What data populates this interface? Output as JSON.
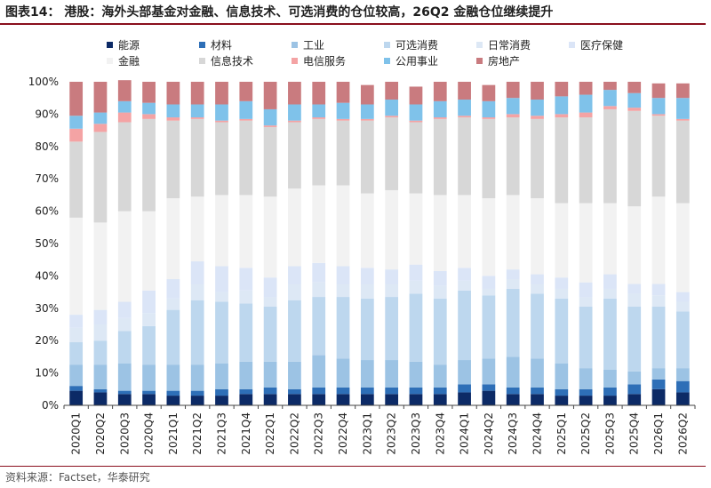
{
  "header": {
    "title": "图表14：  港股：海外头部基金对金融、信息技术、可选消费的仓位较高，26Q2 金融仓位继续提升"
  },
  "source": "资料来源：Factset，华泰研究",
  "chart_data": {
    "type": "bar",
    "stacked": true,
    "ylim": [
      0,
      100
    ],
    "yticks": [
      "0%",
      "10%",
      "20%",
      "30%",
      "40%",
      "50%",
      "60%",
      "70%",
      "80%",
      "90%",
      "100%"
    ],
    "legend_position": "top",
    "grid": false,
    "categories": [
      "2020Q1",
      "2020Q2",
      "2020Q3",
      "2020Q4",
      "2021Q1",
      "2021Q2",
      "2021Q3",
      "2021Q4",
      "2022Q1",
      "2022Q2",
      "2022Q3",
      "2022Q4",
      "2023Q1",
      "2023Q2",
      "2023Q3",
      "2023Q4",
      "2024Q1",
      "2024Q2",
      "2024Q3",
      "2024Q4",
      "2025Q1",
      "2025Q2",
      "2025Q3",
      "2025Q4",
      "2026Q1",
      "2026Q2"
    ],
    "series": [
      {
        "name": "能源",
        "color": "#0c2a66",
        "values": [
          4.5,
          4,
          3.5,
          3.5,
          3,
          3,
          3,
          3.5,
          3.5,
          3.5,
          3.5,
          3.5,
          3.5,
          3.5,
          3.5,
          3.5,
          4,
          4.5,
          3.5,
          3.5,
          3,
          3,
          3,
          3.5,
          5,
          4
        ]
      },
      {
        "name": "材料",
        "color": "#2e6fb7",
        "values": [
          1.5,
          1,
          1,
          1,
          1.5,
          1.5,
          2,
          1.5,
          2,
          1.5,
          2,
          2,
          2,
          2,
          2,
          2,
          2.5,
          2,
          2,
          2,
          2,
          2,
          2.5,
          3,
          3,
          3.5
        ]
      },
      {
        "name": "工业",
        "color": "#9cc3e4",
        "values": [
          6.5,
          7.5,
          8.5,
          8,
          8,
          8,
          8,
          8.5,
          8,
          8.5,
          10,
          9,
          8.5,
          8.5,
          8,
          7,
          7.5,
          8,
          9.5,
          9,
          8,
          6.5,
          5.5,
          4,
          3.5,
          4
        ]
      },
      {
        "name": "可选消费",
        "color": "#bdd7ee",
        "values": [
          7,
          7.5,
          10,
          12,
          17,
          20,
          19,
          18,
          17,
          19,
          18,
          19,
          19,
          19.5,
          21,
          20.5,
          21.5,
          19.5,
          21,
          20,
          20,
          19,
          22,
          20,
          19,
          17.5
        ]
      },
      {
        "name": "日常消费",
        "color": "#dde8f5",
        "values": [
          4.5,
          5,
          4,
          4,
          3.5,
          5,
          3,
          4,
          3,
          5,
          4.5,
          4,
          4.5,
          4,
          4,
          4,
          3,
          2,
          3,
          3,
          3,
          3,
          3,
          4,
          3.5,
          3
        ]
      },
      {
        "name": "医疗保健",
        "color": "#dbe5f7",
        "values": [
          4,
          4.5,
          5,
          7,
          6,
          7,
          8,
          7,
          6,
          5.5,
          6,
          5.5,
          5,
          4.5,
          5,
          4.5,
          4,
          4,
          3,
          3,
          3.5,
          4.5,
          4.5,
          3,
          3.5,
          3
        ]
      },
      {
        "name": "金融",
        "color": "#f2f2f2",
        "values": [
          30,
          27,
          28,
          24.5,
          25,
          20,
          22,
          22.5,
          25,
          24,
          24,
          25,
          23,
          24.5,
          22,
          23.5,
          22.5,
          24,
          23,
          23.5,
          23,
          24.5,
          22,
          24,
          27,
          27.5
        ]
      },
      {
        "name": "信息技术",
        "color": "#d7d7d7",
        "values": [
          23.5,
          28,
          27.5,
          28.5,
          24,
          24,
          22.5,
          23,
          21.5,
          20.5,
          20.5,
          20,
          22.5,
          22.5,
          22,
          23.5,
          24,
          24.5,
          24,
          24.5,
          26.5,
          26.5,
          29,
          29.5,
          25,
          25.5
        ]
      },
      {
        "name": "电信服务",
        "color": "#f4a3a4",
        "values": [
          4,
          2.5,
          3,
          1.5,
          1,
          0.5,
          0.5,
          0.5,
          0.5,
          0.5,
          0.5,
          0.5,
          0.5,
          0.5,
          0.5,
          0.5,
          0.5,
          0.5,
          1,
          1,
          1,
          1.5,
          1,
          1,
          0.5,
          0.5
        ]
      },
      {
        "name": "公用事业",
        "color": "#7fc2ea",
        "values": [
          4,
          3.5,
          3.5,
          3.5,
          4,
          4,
          5,
          5.5,
          5,
          5,
          4,
          5,
          4.5,
          5,
          5,
          5,
          5,
          5,
          5,
          5,
          5.5,
          5.5,
          5,
          4.5,
          5,
          6.5
        ]
      },
      {
        "name": "房地产",
        "color": "#c97b7f",
        "values": [
          10.5,
          9.5,
          6.5,
          6.5,
          7,
          7,
          7,
          6,
          8.5,
          7,
          7,
          6.5,
          6,
          5.5,
          5.5,
          6,
          5.5,
          5,
          5,
          5.5,
          4.5,
          4,
          2.5,
          3.5,
          4.5,
          4.5
        ]
      }
    ]
  }
}
